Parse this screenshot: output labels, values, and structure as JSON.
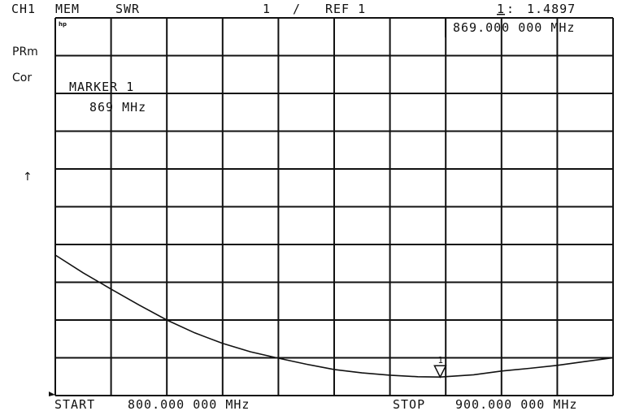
{
  "header": {
    "channel": "CH1",
    "mode": "MEM",
    "format": "SWR",
    "scale": "1",
    "separator": "/",
    "reference": "REF 1",
    "marker_id": "1",
    "marker_colon": ":",
    "marker_value": "1.4897"
  },
  "marker_frequency_readout": "869.000 000 MHz",
  "left_annotations": {
    "prm": "PRm",
    "cor": "Cor",
    "arrow": "↑"
  },
  "logo": "hp",
  "marker_label": {
    "title": "MARKER 1",
    "frequency": "869 MHz"
  },
  "footer": {
    "start_label": "START",
    "start_value": "800.000 000 MHz",
    "stop_label": "STOP",
    "stop_value": "900.000 000 MHz"
  },
  "chart_data": {
    "type": "line",
    "xlabel": "",
    "ylabel": "",
    "x_unit": "MHz",
    "xlim": [
      800,
      900
    ],
    "ylim": [
      1,
      11
    ],
    "x_divisions": 10,
    "y_divisions": 10,
    "grid": true,
    "line_color": "#111111",
    "series": [
      {
        "x": [
          800,
          805,
          810,
          815,
          820,
          825,
          830,
          835,
          840,
          845,
          850,
          855,
          860,
          865,
          869,
          875,
          880,
          885,
          890,
          895,
          900
        ],
        "y": [
          4.72,
          4.25,
          3.82,
          3.4,
          3.0,
          2.66,
          2.38,
          2.16,
          1.99,
          1.83,
          1.69,
          1.6,
          1.54,
          1.5,
          1.4897,
          1.55,
          1.65,
          1.72,
          1.8,
          1.9,
          2.0
        ]
      }
    ],
    "markers": [
      {
        "id": "1",
        "x": 869,
        "y": 1.4897
      }
    ]
  }
}
